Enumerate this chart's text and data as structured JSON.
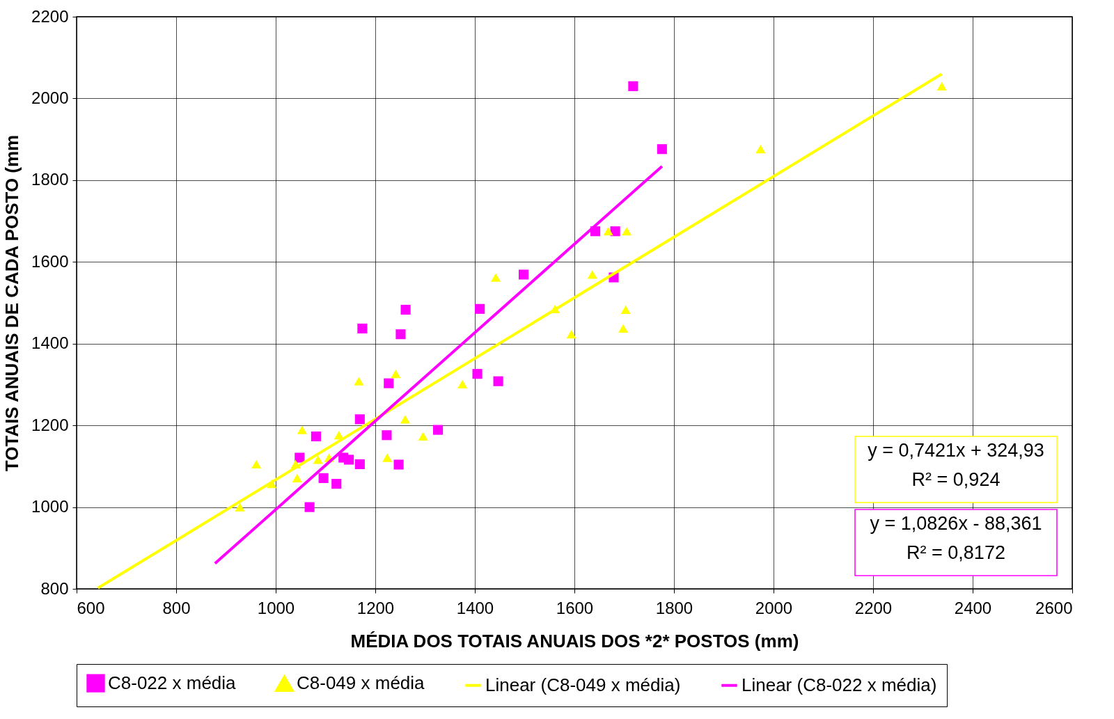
{
  "chart_data": {
    "type": "scatter",
    "xlabel": "MÉDIA DOS TOTAIS ANUAIS DOS *2* POSTOS (mm)",
    "ylabel": "TOTAIS ANUAIS DE CADA POSTO (mm",
    "xlim": [
      600,
      2600
    ],
    "ylim": [
      800,
      2200
    ],
    "xticks": [
      600,
      800,
      1000,
      1200,
      1400,
      1600,
      1800,
      2000,
      2200,
      2400,
      2600
    ],
    "yticks": [
      800,
      1000,
      1200,
      1400,
      1600,
      1800,
      2000,
      2200
    ],
    "grid": true,
    "legend": "bottom",
    "series": [
      {
        "name": "C8-022 x média",
        "color": "#ff00ff",
        "marker": "square",
        "x": [
          1718,
          1776,
          1642,
          1682,
          1679,
          1498,
          1410,
          1261,
          1174,
          1251,
          1405,
          1447,
          1227,
          1169,
          1326,
          1223,
          1081,
          1048,
          1136,
          1147,
          1169,
          1247,
          1096,
          1122,
          1068
        ],
        "values": [
          2030,
          1876,
          1675,
          1675,
          1562,
          1569,
          1485,
          1483,
          1437,
          1423,
          1326,
          1308,
          1303,
          1215,
          1189,
          1176,
          1173,
          1121,
          1121,
          1116,
          1105,
          1104,
          1071,
          1057,
          1000
        ]
      },
      {
        "name": "C8-049 x média",
        "color": "#ffff00",
        "marker": "triangle",
        "x": [
          2338,
          1974,
          1668,
          1705,
          1442,
          1636,
          1561,
          1703,
          1698,
          1594,
          1167,
          1241,
          1375,
          1260,
          1053,
          1127,
          1296,
          1224,
          1107,
          1085,
          1040,
          961,
          1043,
          992,
          928
        ],
        "values": [
          2030,
          1876,
          1675,
          1675,
          1562,
          1569,
          1485,
          1483,
          1437,
          1423,
          1308,
          1326,
          1301,
          1215,
          1189,
          1176,
          1173,
          1121,
          1121,
          1116,
          1105,
          1105,
          1071,
          1057,
          1000
        ]
      },
      {
        "name": "Linear (C8-049 x média)",
        "type": "line",
        "color": "#ffff00",
        "marker": "none",
        "x": [
          643,
          2338
        ],
        "values": [
          802,
          2060
        ]
      },
      {
        "name": "Linear (C8-022 x média)",
        "type": "line",
        "color": "#ff00ff",
        "marker": "none",
        "x": [
          878,
          1776
        ],
        "values": [
          862,
          1834
        ]
      }
    ],
    "annotations": [
      "y = 0,7421x + 324,93\nR² = 0,924",
      "y = 1,0826x - 88,361\nR² = 0,8172"
    ]
  }
}
